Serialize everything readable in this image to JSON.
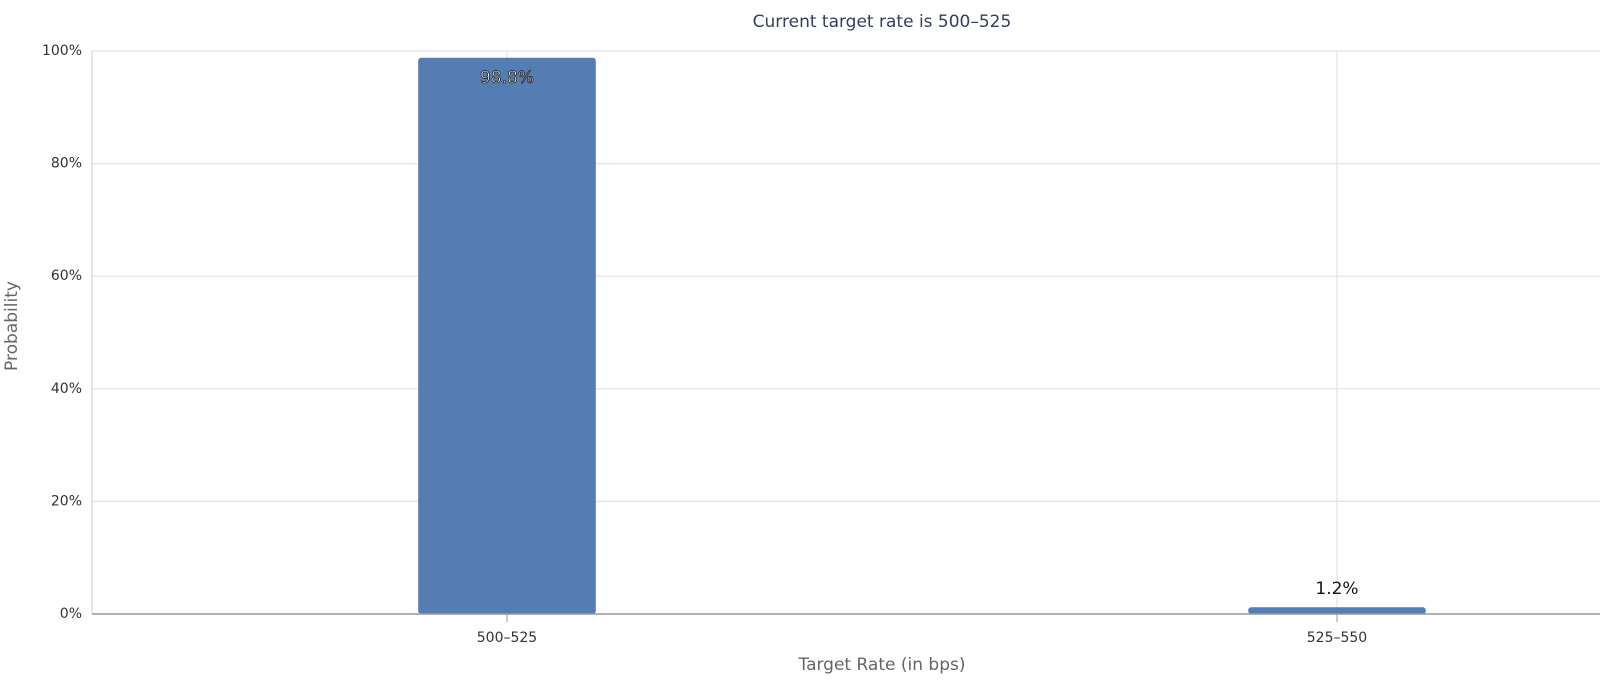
{
  "chart_data": {
    "type": "bar",
    "title": "Current target rate is 500–525",
    "x_label": "Target Rate (in bps)",
    "y_label": "Probability",
    "categories": [
      "500–525",
      "525–550"
    ],
    "values": [
      98.8,
      1.2
    ],
    "value_labels": [
      "98.8%",
      "1.2%"
    ],
    "color": "#547eb3",
    "ylim": [
      0,
      100
    ],
    "yticks": [
      {
        "value": 0,
        "label": "0%"
      },
      {
        "value": 20,
        "label": "20%"
      },
      {
        "value": 40,
        "label": "40%"
      },
      {
        "value": 60,
        "label": "60%"
      },
      {
        "value": 80,
        "label": "80%"
      },
      {
        "value": 100,
        "label": "100%"
      }
    ],
    "grid": true
  }
}
